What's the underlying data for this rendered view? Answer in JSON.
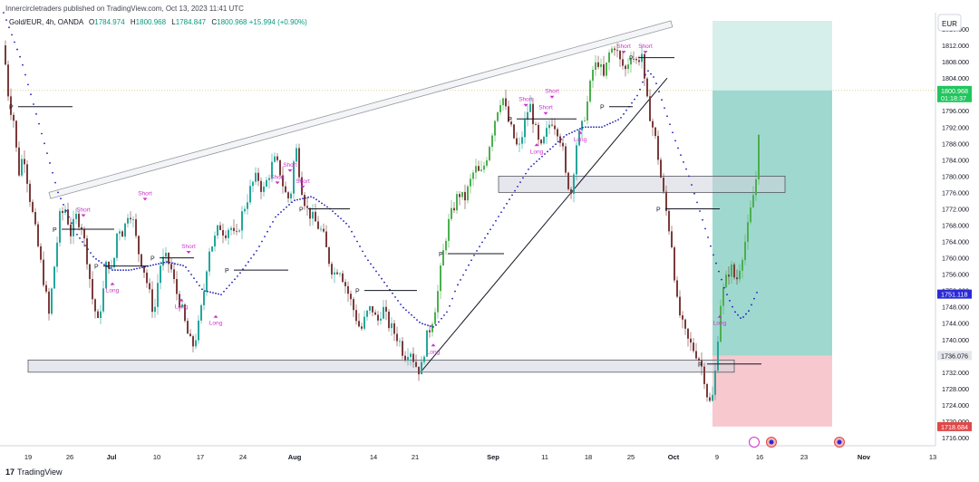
{
  "header": {
    "published_line": "Innercircletraders published on TradingView.com, Oct 13, 2023 11:41 UTC",
    "symbol": "Gold/EUR, 4h, OANDA",
    "open_label": "O",
    "open": "1784.974",
    "high_label": "H",
    "high": "1800.968",
    "low_label": "L",
    "low": "1784.847",
    "close_label": "C",
    "close": "1800.968",
    "change": "+15.994 (+0.90%)"
  },
  "currency_button": "EUR",
  "footer": {
    "brand": "TradingView",
    "logo": "17"
  },
  "colors": {
    "up": "#26a69a",
    "up_strong": "#4caf50",
    "down": "#7b3b3b",
    "ma": "#1d1db8",
    "zone": "#d1d4dc",
    "target": "#9fd8cf",
    "stop": "#f7c9cf",
    "label": "#cc33cc",
    "last_price_bg": "#22c55e",
    "ma_badge_bg": "#2a2ad8",
    "entry_badge_bg": "#e5e7eb",
    "stop_badge_bg": "#e04848"
  },
  "chart_data": {
    "type": "candlestick",
    "price_axis": {
      "ticks": [
        "1816.000",
        "1812.000",
        "1808.000",
        "1804.000",
        "1800.000",
        "1796.000",
        "1792.000",
        "1788.000",
        "1784.000",
        "1780.000",
        "1776.000",
        "1772.000",
        "1768.000",
        "1764.000",
        "1760.000",
        "1756.000",
        "1752.000",
        "1748.000",
        "1744.000",
        "1740.000",
        "1736.000",
        "1732.000",
        "1728.000",
        "1724.000",
        "1720.000",
        "1716.000"
      ],
      "ylim": [
        1714,
        1820
      ]
    },
    "time_axis": {
      "ticks": [
        "19",
        "26",
        "Jul",
        "10",
        "17",
        "24",
        "Aug",
        "14",
        "21",
        "Sep",
        "11",
        "18",
        "25",
        "Oct",
        "9",
        "16",
        "23",
        "Nov",
        "13"
      ]
    },
    "badges": {
      "last_price": "1800.968",
      "countdown": "01:18:37",
      "ma_value": "1751.118",
      "entry": "1736.076",
      "stop": "1718.684"
    },
    "close_path": [
      [
        0,
        1812
      ],
      [
        6,
        1798
      ],
      [
        12,
        1793
      ],
      [
        16,
        1780
      ],
      [
        22,
        1786
      ],
      [
        28,
        1776
      ],
      [
        34,
        1768
      ],
      [
        40,
        1760
      ],
      [
        46,
        1752
      ],
      [
        50,
        1746
      ],
      [
        56,
        1758
      ],
      [
        62,
        1770
      ],
      [
        68,
        1772
      ],
      [
        74,
        1766
      ],
      [
        80,
        1770
      ],
      [
        86,
        1768
      ],
      [
        92,
        1760
      ],
      [
        98,
        1750
      ],
      [
        104,
        1744
      ],
      [
        110,
        1752
      ],
      [
        114,
        1760
      ],
      [
        120,
        1756
      ],
      [
        126,
        1768
      ],
      [
        132,
        1766
      ],
      [
        138,
        1772
      ],
      [
        142,
        1770
      ],
      [
        148,
        1762
      ],
      [
        154,
        1758
      ],
      [
        160,
        1752
      ],
      [
        166,
        1746
      ],
      [
        172,
        1758
      ],
      [
        178,
        1760
      ],
      [
        184,
        1758
      ],
      [
        190,
        1752
      ],
      [
        196,
        1748
      ],
      [
        202,
        1742
      ],
      [
        208,
        1738
      ],
      [
        214,
        1742
      ],
      [
        220,
        1750
      ],
      [
        226,
        1762
      ],
      [
        232,
        1764
      ],
      [
        238,
        1768
      ],
      [
        244,
        1766
      ],
      [
        250,
        1768
      ],
      [
        256,
        1764
      ],
      [
        262,
        1770
      ],
      [
        268,
        1774
      ],
      [
        274,
        1778
      ],
      [
        280,
        1780
      ],
      [
        286,
        1776
      ],
      [
        292,
        1780
      ],
      [
        298,
        1784
      ],
      [
        304,
        1782
      ],
      [
        310,
        1776
      ],
      [
        316,
        1774
      ],
      [
        322,
        1788
      ],
      [
        328,
        1778
      ],
      [
        334,
        1772
      ],
      [
        340,
        1770
      ],
      [
        346,
        1768
      ],
      [
        352,
        1766
      ],
      [
        358,
        1760
      ],
      [
        364,
        1756
      ],
      [
        370,
        1758
      ],
      [
        376,
        1754
      ],
      [
        382,
        1750
      ],
      [
        388,
        1746
      ],
      [
        394,
        1742
      ],
      [
        400,
        1746
      ],
      [
        406,
        1748
      ],
      [
        412,
        1744
      ],
      [
        418,
        1748
      ],
      [
        424,
        1744
      ],
      [
        430,
        1742
      ],
      [
        436,
        1740
      ],
      [
        442,
        1736
      ],
      [
        448,
        1738
      ],
      [
        454,
        1734
      ],
      [
        460,
        1732
      ],
      [
        466,
        1740
      ],
      [
        472,
        1744
      ],
      [
        478,
        1750
      ],
      [
        484,
        1760
      ],
      [
        490,
        1768
      ],
      [
        496,
        1772
      ],
      [
        502,
        1776
      ],
      [
        508,
        1774
      ],
      [
        514,
        1778
      ],
      [
        520,
        1782
      ],
      [
        526,
        1780
      ],
      [
        532,
        1784
      ],
      [
        538,
        1790
      ],
      [
        544,
        1796
      ],
      [
        550,
        1800
      ],
      [
        556,
        1794
      ],
      [
        562,
        1790
      ],
      [
        568,
        1786
      ],
      [
        574,
        1792
      ],
      [
        580,
        1798
      ],
      [
        586,
        1792
      ],
      [
        592,
        1786
      ],
      [
        598,
        1790
      ],
      [
        604,
        1794
      ],
      [
        610,
        1792
      ],
      [
        616,
        1788
      ],
      [
        620,
        1780
      ],
      [
        626,
        1776
      ],
      [
        632,
        1788
      ],
      [
        638,
        1792
      ],
      [
        644,
        1798
      ],
      [
        650,
        1806
      ],
      [
        656,
        1808
      ],
      [
        662,
        1804
      ],
      [
        668,
        1810
      ],
      [
        674,
        1812
      ],
      [
        680,
        1808
      ],
      [
        686,
        1806
      ],
      [
        692,
        1810
      ],
      [
        698,
        1808
      ],
      [
        704,
        1810
      ],
      [
        708,
        1800
      ],
      [
        714,
        1794
      ],
      [
        720,
        1788
      ],
      [
        726,
        1778
      ],
      [
        732,
        1770
      ],
      [
        738,
        1762
      ],
      [
        742,
        1750
      ],
      [
        748,
        1744
      ],
      [
        754,
        1740
      ],
      [
        760,
        1738
      ],
      [
        766,
        1736
      ],
      [
        772,
        1732
      ],
      [
        778,
        1724
      ],
      [
        782,
        1726
      ],
      [
        786,
        1734
      ],
      [
        790,
        1748
      ],
      [
        796,
        1754
      ],
      [
        802,
        1758
      ],
      [
        808,
        1754
      ],
      [
        814,
        1760
      ],
      [
        820,
        1766
      ],
      [
        826,
        1774
      ],
      [
        832,
        1782
      ],
      [
        834,
        1801
      ]
    ],
    "ma_path": [
      [
        0,
        1820
      ],
      [
        20,
        1808
      ],
      [
        40,
        1792
      ],
      [
        60,
        1776
      ],
      [
        80,
        1766
      ],
      [
        100,
        1760
      ],
      [
        120,
        1757
      ],
      [
        140,
        1757
      ],
      [
        160,
        1758
      ],
      [
        180,
        1759
      ],
      [
        200,
        1758
      ],
      [
        220,
        1752
      ],
      [
        240,
        1751
      ],
      [
        260,
        1756
      ],
      [
        280,
        1762
      ],
      [
        300,
        1770
      ],
      [
        320,
        1774
      ],
      [
        340,
        1775
      ],
      [
        360,
        1772
      ],
      [
        380,
        1768
      ],
      [
        400,
        1760
      ],
      [
        420,
        1754
      ],
      [
        440,
        1748
      ],
      [
        460,
        1744
      ],
      [
        475,
        1743
      ],
      [
        490,
        1747
      ],
      [
        500,
        1753
      ],
      [
        520,
        1761
      ],
      [
        540,
        1768
      ],
      [
        560,
        1775
      ],
      [
        580,
        1782
      ],
      [
        600,
        1786
      ],
      [
        620,
        1790
      ],
      [
        640,
        1792
      ],
      [
        660,
        1792
      ],
      [
        680,
        1794
      ],
      [
        700,
        1800
      ],
      [
        710,
        1806
      ],
      [
        718,
        1804
      ],
      [
        730,
        1796
      ],
      [
        742,
        1788
      ],
      [
        756,
        1780
      ],
      [
        770,
        1770
      ],
      [
        784,
        1760
      ],
      [
        796,
        1752
      ],
      [
        806,
        1747
      ],
      [
        814,
        1745
      ],
      [
        822,
        1747
      ],
      [
        832,
        1752
      ]
    ],
    "signals": [
      {
        "text": "Short",
        "t": 88,
        "p": 1770
      },
      {
        "text": "Short",
        "t": 156,
        "p": 1774
      },
      {
        "text": "Short",
        "t": 204,
        "p": 1761
      },
      {
        "text": "Short",
        "t": 316,
        "p": 1781
      },
      {
        "text": "Short",
        "t": 302,
        "p": 1778
      },
      {
        "text": "Short",
        "t": 330,
        "p": 1777
      },
      {
        "text": "Short",
        "t": 576,
        "p": 1797
      },
      {
        "text": "Short",
        "t": 605,
        "p": 1799
      },
      {
        "text": "Short",
        "t": 598,
        "p": 1795
      },
      {
        "text": "Short",
        "t": 684,
        "p": 1810
      },
      {
        "text": "Short",
        "t": 708,
        "p": 1810
      },
      {
        "text": "Long",
        "t": 120,
        "p": 1754
      },
      {
        "text": "Long",
        "t": 196,
        "p": 1750
      },
      {
        "text": "Long",
        "t": 234,
        "p": 1746
      },
      {
        "text": "Long",
        "t": 474,
        "p": 1739
      },
      {
        "text": "Long",
        "t": 588,
        "p": 1788
      },
      {
        "text": "Long",
        "t": 636,
        "p": 1791
      },
      {
        "text": "Long",
        "t": 790,
        "p": 1746
      }
    ],
    "pivots": [
      {
        "text": "P",
        "t": 16,
        "p": 1797,
        "end": 76
      },
      {
        "text": "P",
        "t": 64,
        "p": 1767,
        "end": 122
      },
      {
        "text": "P",
        "t": 110,
        "p": 1758,
        "end": 160
      },
      {
        "text": "P",
        "t": 172,
        "p": 1760,
        "end": 210
      },
      {
        "text": "P",
        "t": 254,
        "p": 1757,
        "end": 314
      },
      {
        "text": "P",
        "t": 336,
        "p": 1772,
        "end": 382
      },
      {
        "text": "P",
        "t": 398,
        "p": 1752,
        "end": 456
      },
      {
        "text": "P",
        "t": 490,
        "p": 1761,
        "end": 552
      },
      {
        "text": "P",
        "t": 566,
        "p": 1794,
        "end": 632
      },
      {
        "text": "P",
        "t": 668,
        "p": 1797,
        "end": 694
      },
      {
        "text": "P",
        "t": 700,
        "p": 1809,
        "end": 740
      },
      {
        "text": "P",
        "t": 730,
        "p": 1772,
        "end": 790
      },
      {
        "text": "P",
        "t": 776,
        "p": 1734,
        "end": 836
      }
    ],
    "zones": [
      {
        "t0": 27,
        "t1": 806,
        "p0": 1735,
        "p1": 1732
      },
      {
        "t0": 546,
        "t1": 862,
        "p0": 1780,
        "p1": 1776
      }
    ],
    "trendlines": [
      {
        "t0": 50,
        "p0": 1776,
        "t1": 736,
        "p1": 1818
      },
      {
        "t0": 460,
        "p0": 1732,
        "t1": 732,
        "p1": 1804
      }
    ],
    "position": {
      "t0": 782,
      "t1": 914,
      "entry": 1736.076,
      "target": 1818,
      "stop": 1718.684,
      "current": 1800.968
    }
  }
}
